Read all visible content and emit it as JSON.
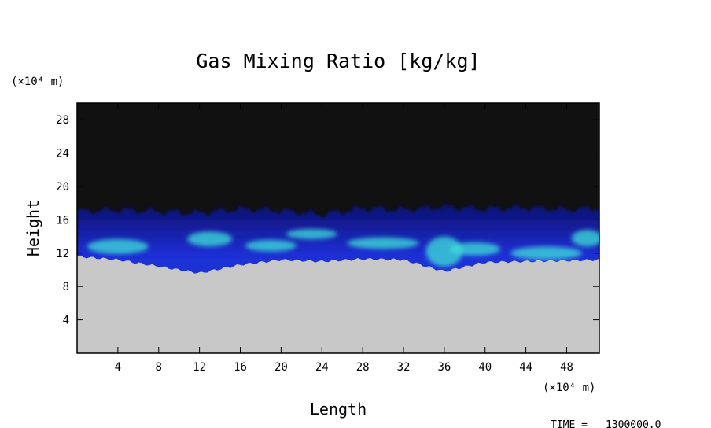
{
  "chart_data": {
    "type": "heatmap",
    "title": "Gas Mixing Ratio [kg/kg]",
    "xlabel": "Length",
    "ylabel": "Height",
    "x_unit": "(×10⁴ m)",
    "y_unit": "(×10⁴ m)",
    "x_ticks": [
      4,
      8,
      12,
      16,
      20,
      24,
      28,
      32,
      36,
      40,
      44,
      48
    ],
    "y_ticks": [
      4,
      8,
      12,
      16,
      20,
      24,
      28
    ],
    "xlim": [
      0,
      51.2
    ],
    "ylim": [
      0,
      30
    ],
    "grid": false,
    "legend": "none",
    "time_label": "TIME =",
    "time_value": "1300000.0",
    "colors": {
      "upper_region": "#111111",
      "transition_band": "#1e2fd0",
      "mixing_highlight": "#3fe0d8",
      "lower_region": "#c8c8c8"
    },
    "region_boundaries": {
      "upper_edge_height": [
        17,
        17.2,
        16.8,
        17.3,
        17.1,
        16.6,
        17.4,
        17.2,
        17.6,
        17.3,
        17.5,
        17.2,
        17.4
      ],
      "lower_edge_height": [
        11.6,
        11.2,
        9.6,
        10.6,
        11.2,
        11.0,
        11.3,
        11.2,
        9.8,
        10.9,
        11.0,
        11.1,
        11.2
      ],
      "sample_x": [
        0,
        4,
        12,
        16,
        20,
        24,
        28,
        32,
        36,
        40,
        44,
        48,
        51.2
      ]
    }
  }
}
